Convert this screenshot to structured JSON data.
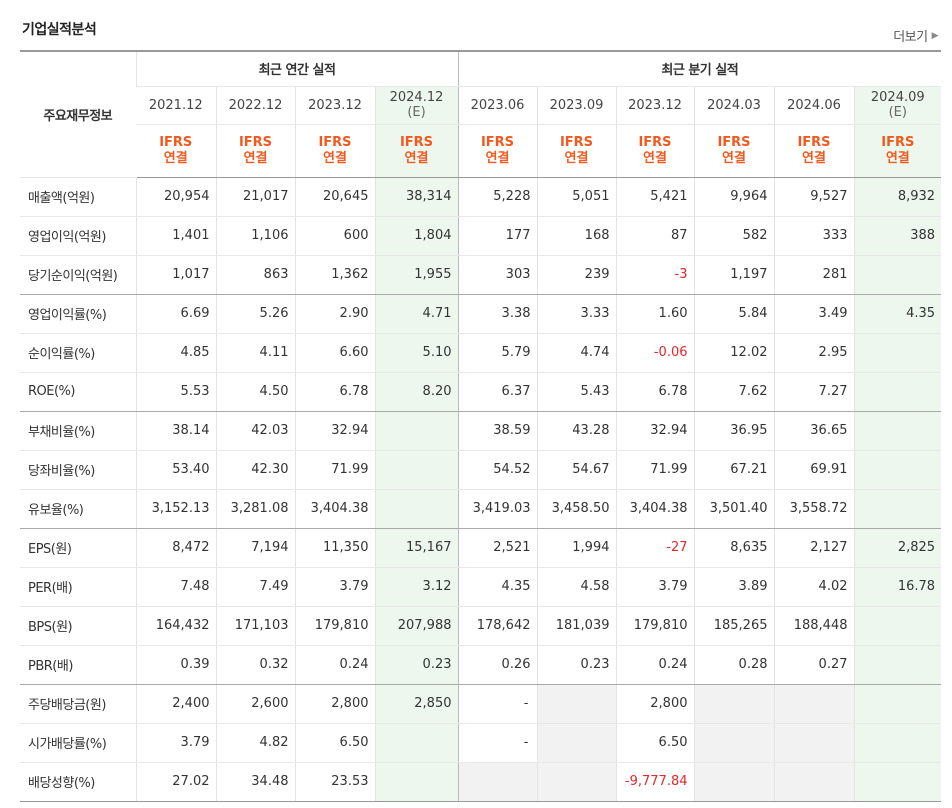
{
  "section_title": "기업실적분석",
  "more_label": "더보기",
  "header": {
    "corner": "주요재무정보",
    "annual_group": "최근 연간 실적",
    "quarter_group": "최근 분기 실적",
    "annual_periods": [
      {
        "year": "2021.12",
        "est": "",
        "ifrs": "IFRS",
        "basis": "연결"
      },
      {
        "year": "2022.12",
        "est": "",
        "ifrs": "IFRS",
        "basis": "연결"
      },
      {
        "year": "2023.12",
        "est": "",
        "ifrs": "IFRS",
        "basis": "연결"
      },
      {
        "year": "2024.12",
        "est": "(E)",
        "ifrs": "IFRS",
        "basis": "연결"
      }
    ],
    "quarter_periods": [
      {
        "year": "2023.06",
        "est": "",
        "ifrs": "IFRS",
        "basis": "연결"
      },
      {
        "year": "2023.09",
        "est": "",
        "ifrs": "IFRS",
        "basis": "연결"
      },
      {
        "year": "2023.12",
        "est": "",
        "ifrs": "IFRS",
        "basis": "연결"
      },
      {
        "year": "2024.03",
        "est": "",
        "ifrs": "IFRS",
        "basis": "연결"
      },
      {
        "year": "2024.06",
        "est": "",
        "ifrs": "IFRS",
        "basis": "연결"
      },
      {
        "year": "2024.09",
        "est": "(E)",
        "ifrs": "IFRS",
        "basis": "연결"
      }
    ]
  },
  "rows": [
    {
      "label": "매출액(억원)",
      "values": [
        "20,954",
        "21,017",
        "20,645",
        "38,314",
        "5,228",
        "5,051",
        "5,421",
        "9,964",
        "9,527",
        "8,932"
      ]
    },
    {
      "label": "영업이익(억원)",
      "values": [
        "1,401",
        "1,106",
        "600",
        "1,804",
        "177",
        "168",
        "87",
        "582",
        "333",
        "388"
      ]
    },
    {
      "label": "당기순이익(억원)",
      "values": [
        "1,017",
        "863",
        "1,362",
        "1,955",
        "303",
        "239",
        "-3",
        "1,197",
        "281",
        ""
      ]
    },
    {
      "label": "영업이익률(%)",
      "values": [
        "6.69",
        "5.26",
        "2.90",
        "4.71",
        "3.38",
        "3.33",
        "1.60",
        "5.84",
        "3.49",
        "4.35"
      ]
    },
    {
      "label": "순이익률(%)",
      "values": [
        "4.85",
        "4.11",
        "6.60",
        "5.10",
        "5.79",
        "4.74",
        "-0.06",
        "12.02",
        "2.95",
        ""
      ]
    },
    {
      "label": "ROE(%)",
      "values": [
        "5.53",
        "4.50",
        "6.78",
        "8.20",
        "6.37",
        "5.43",
        "6.78",
        "7.62",
        "7.27",
        ""
      ]
    },
    {
      "label": "부채비율(%)",
      "values": [
        "38.14",
        "42.03",
        "32.94",
        "",
        "38.59",
        "43.28",
        "32.94",
        "36.95",
        "36.65",
        ""
      ]
    },
    {
      "label": "당좌비율(%)",
      "values": [
        "53.40",
        "42.30",
        "71.99",
        "",
        "54.52",
        "54.67",
        "71.99",
        "67.21",
        "69.91",
        ""
      ]
    },
    {
      "label": "유보율(%)",
      "values": [
        "3,152.13",
        "3,281.08",
        "3,404.38",
        "",
        "3,419.03",
        "3,458.50",
        "3,404.38",
        "3,501.40",
        "3,558.72",
        ""
      ]
    },
    {
      "label": "EPS(원)",
      "values": [
        "8,472",
        "7,194",
        "11,350",
        "15,167",
        "2,521",
        "1,994",
        "-27",
        "8,635",
        "2,127",
        "2,825"
      ]
    },
    {
      "label": "PER(배)",
      "values": [
        "7.48",
        "7.49",
        "3.79",
        "3.12",
        "4.35",
        "4.58",
        "3.79",
        "3.89",
        "4.02",
        "16.78"
      ]
    },
    {
      "label": "BPS(원)",
      "values": [
        "164,432",
        "171,103",
        "179,810",
        "207,988",
        "178,642",
        "181,039",
        "179,810",
        "185,265",
        "188,448",
        ""
      ]
    },
    {
      "label": "PBR(배)",
      "values": [
        "0.39",
        "0.32",
        "0.24",
        "0.23",
        "0.26",
        "0.23",
        "0.24",
        "0.28",
        "0.27",
        ""
      ]
    },
    {
      "label": "주당배당금(원)",
      "values": [
        "2,400",
        "2,600",
        "2,800",
        "2,850",
        "-",
        "",
        "2,800",
        "",
        "",
        ""
      ]
    },
    {
      "label": "시가배당률(%)",
      "values": [
        "3.79",
        "4.82",
        "6.50",
        "",
        "-",
        "",
        "6.50",
        "",
        "",
        ""
      ]
    },
    {
      "label": "배당성향(%)",
      "values": [
        "27.02",
        "34.48",
        "23.53",
        "",
        "",
        "",
        "-9,777.84",
        "",
        "",
        ""
      ]
    }
  ],
  "styling": {
    "negative_color": "#e3262b",
    "ifrs_color": "#f05a1e",
    "estimate_bg": "#eef7ee",
    "blank_bg": "#f2f2f2"
  }
}
